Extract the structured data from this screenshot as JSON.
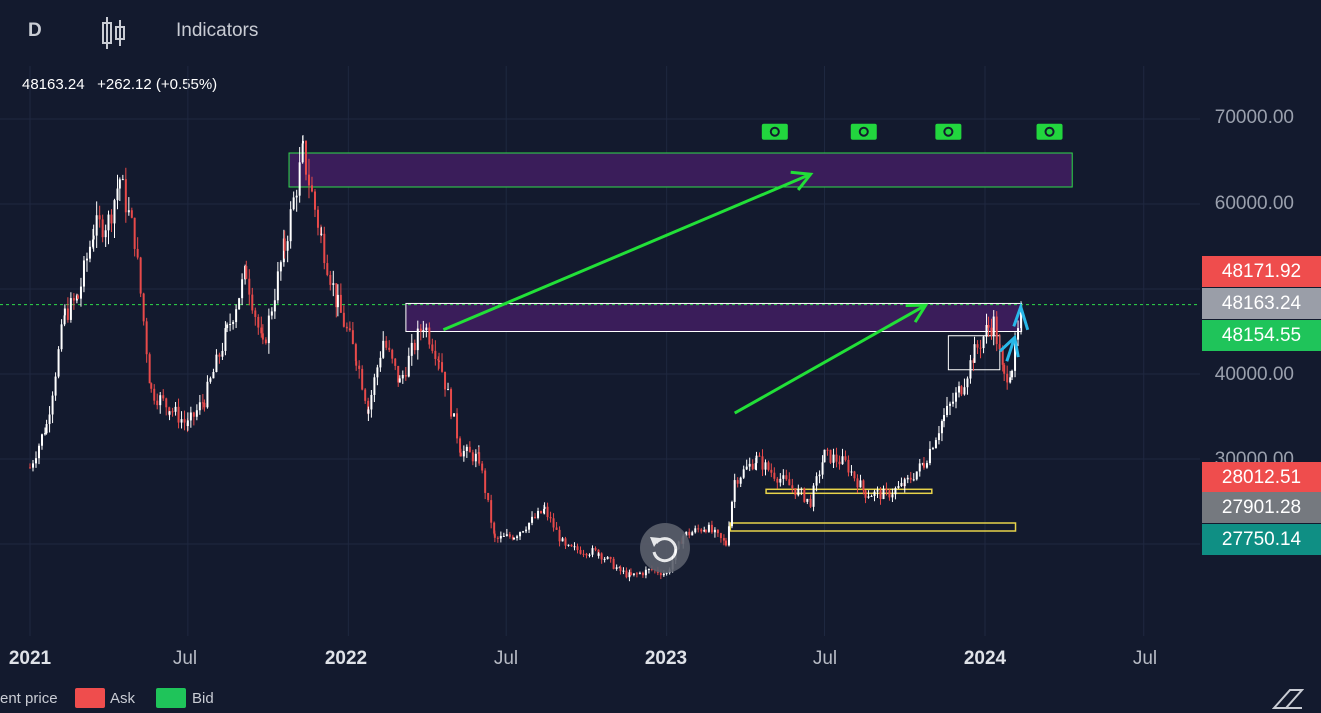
{
  "toolbar": {
    "interval": "D",
    "candle_icon": "candlestick-icon",
    "indicators": "Indicators"
  },
  "readout": {
    "last": "48163.24",
    "change": "+262.12 (+0.55%)"
  },
  "price_tags": {
    "ask": "48171.92",
    "last": "48163.24",
    "bid": "48154.55",
    "ask2": "28012.51",
    "last2": "27901.28",
    "bid2": "27750.14"
  },
  "legend": {
    "current": "ent price",
    "ask": "Ask",
    "bid": "Bid"
  },
  "colors": {
    "background": "#131a2e",
    "up": "#ffffff",
    "down": "#e84a4a",
    "ask": "#ef4d4d",
    "bid": "#1fc45a",
    "arrow": "#22e038",
    "zone": "#3a1d5a"
  },
  "icons": {
    "money": "money-icon",
    "reset": "reset-icon",
    "ruler": "ruler-icon"
  },
  "chart_data": {
    "type": "line",
    "y_axis": {
      "ticks": [
        "70000.00",
        "60000.00",
        "40000.00",
        "30000.00"
      ],
      "range": [
        22000,
        74000
      ]
    },
    "x_axis": {
      "ticks": [
        "2021",
        "Jul",
        "2022",
        "Jul",
        "2023",
        "Jul",
        "2024",
        "Jul"
      ]
    },
    "series": [
      {
        "x": [
          "2021-01-01",
          "2021-01-20",
          "2021-02-10",
          "2021-02-25",
          "2021-03-15",
          "2021-04-01",
          "2021-04-14",
          "2021-05-01",
          "2021-05-20",
          "2021-06-10",
          "2021-07-01",
          "2021-07-20",
          "2021-08-15",
          "2021-09-06",
          "2021-09-25",
          "2021-10-20",
          "2021-11-10",
          "2021-12-01",
          "2021-12-20",
          "2022-01-10",
          "2022-01-24",
          "2022-02-10",
          "2022-03-01",
          "2022-03-28",
          "2022-04-15",
          "2022-05-10",
          "2022-05-31",
          "2022-06-18",
          "2022-07-10",
          "2022-08-14",
          "2022-09-07",
          "2022-10-15",
          "2022-11-09",
          "2022-11-21",
          "2022-12-15",
          "2023-01-01",
          "2023-01-20",
          "2023-02-15",
          "2023-03-10",
          "2023-03-20",
          "2023-04-14",
          "2023-05-01",
          "2023-06-15",
          "2023-07-01",
          "2023-07-25",
          "2023-08-17",
          "2023-09-10",
          "2023-10-01",
          "2023-10-23",
          "2023-11-15",
          "2023-12-05",
          "2023-12-20",
          "2024-01-05",
          "2024-01-11",
          "2024-01-23",
          "2024-02-01",
          "2024-02-14"
        ],
        "close": [
          29000,
          34000,
          47000,
          49000,
          57000,
          58000,
          63000,
          56000,
          38000,
          36000,
          34000,
          37000,
          45000,
          52000,
          43000,
          55000,
          66000,
          56000,
          48000,
          42000,
          36000,
          44000,
          39000,
          46000,
          42000,
          31000,
          30000,
          20500,
          21000,
          24000,
          19500,
          19000,
          16800,
          16200,
          17000,
          16500,
          21000,
          22000,
          20000,
          27500,
          30000,
          28500,
          25000,
          30500,
          29500,
          26000,
          25800,
          27000,
          29500,
          35000,
          38500,
          42500,
          45500,
          46000,
          39500,
          41000,
          48163
        ]
      }
    ]
  },
  "annotations": {
    "zones": [
      {
        "label": "resistance-zone-top",
        "y_low": 62000,
        "y_high": 66000
      },
      {
        "label": "resistance-zone-mid",
        "y_low": 45000,
        "y_high": 48300
      }
    ],
    "supports": [
      {
        "label": "support-line-upper",
        "y": 26200
      },
      {
        "label": "support-line-lower",
        "y": 22000
      }
    ]
  }
}
